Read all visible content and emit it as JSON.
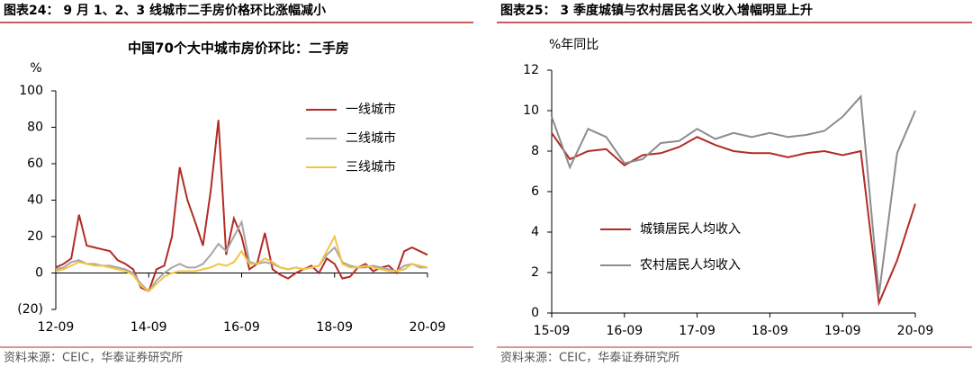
{
  "headers": [
    "图表24：  9 月 1、2、3 线城市二手房价格环比涨幅减小",
    "图表25：  3 季度城镇与农村居民名义收入增幅明显上升"
  ],
  "sources": [
    "资料来源：CEIC，华泰证券研究所",
    "资料来源：CEIC，华泰证券研究所"
  ],
  "chart_data": [
    {
      "type": "line",
      "title": "中国70个大中城市房价环比：二手房",
      "ylabel": "%",
      "categories": [
        "12-09",
        null,
        null,
        null,
        null,
        null,
        null,
        null,
        null,
        null,
        null,
        null,
        "14-09",
        null,
        null,
        null,
        null,
        null,
        null,
        null,
        null,
        null,
        null,
        null,
        "16-09",
        null,
        null,
        null,
        null,
        null,
        null,
        null,
        null,
        null,
        null,
        null,
        "18-09",
        null,
        null,
        null,
        null,
        null,
        null,
        null,
        null,
        null,
        null,
        null,
        "20-09"
      ],
      "ylim": [
        -20,
        100
      ],
      "yticks": [
        {
          "value": -20,
          "label": "(20)"
        },
        0,
        20,
        40,
        60,
        80,
        100
      ],
      "legend": "upper-right",
      "series": [
        {
          "name": "一线城市",
          "color": "#b22b26",
          "values": [
            3,
            5,
            8,
            32,
            15,
            14,
            13,
            12,
            7,
            5,
            2,
            -8,
            -10,
            2,
            4,
            20,
            58,
            40,
            28,
            15,
            45,
            84,
            10,
            30,
            20,
            2,
            5,
            22,
            2,
            -1,
            -3,
            0,
            2,
            4,
            0,
            8,
            5,
            -3,
            -2,
            3,
            5,
            1,
            3,
            4,
            0,
            12,
            14,
            12,
            10
          ]
        },
        {
          "name": "二线城市",
          "color": "#a6a6a6",
          "values": [
            2,
            3,
            6,
            7,
            5,
            5,
            4,
            4,
            3,
            2,
            0,
            -6,
            -10,
            -4,
            0,
            3,
            5,
            3,
            3,
            5,
            10,
            16,
            12,
            20,
            28,
            6,
            5,
            6,
            5,
            3,
            2,
            3,
            2,
            3,
            4,
            10,
            14,
            6,
            4,
            3,
            3,
            4,
            3,
            2,
            1,
            4,
            5,
            3,
            3
          ]
        },
        {
          "name": "三线城市",
          "color": "#f5c342",
          "values": [
            1,
            2,
            4,
            6,
            5,
            4,
            4,
            3,
            2,
            1,
            -1,
            -7,
            -10,
            -6,
            -2,
            0,
            1,
            1,
            1,
            2,
            3,
            5,
            4,
            6,
            12,
            5,
            5,
            8,
            6,
            3,
            2,
            3,
            2,
            3,
            4,
            12,
            20,
            5,
            3,
            3,
            4,
            3,
            2,
            1,
            1,
            2,
            5,
            4,
            3
          ]
        }
      ]
    },
    {
      "type": "line",
      "ylabel": "%年同比",
      "categories": [
        "15-09",
        null,
        null,
        null,
        "16-09",
        null,
        null,
        null,
        "17-09",
        null,
        null,
        null,
        "18-09",
        null,
        null,
        null,
        "19-09",
        null,
        null,
        null,
        "20-09"
      ],
      "ylim": [
        0,
        12
      ],
      "yticks": [
        0,
        2,
        4,
        6,
        8,
        10,
        12
      ],
      "legend": "center-left",
      "series": [
        {
          "name": "城镇居民人均收入",
          "color": "#b22b26",
          "values": [
            8.9,
            7.6,
            8.0,
            8.1,
            7.3,
            7.8,
            7.9,
            8.2,
            8.7,
            8.3,
            8.0,
            7.9,
            7.9,
            7.7,
            7.9,
            8.0,
            7.8,
            8.0,
            0.5,
            2.6,
            5.4
          ]
        },
        {
          "name": "农村居民人均收入",
          "color": "#8c8c8c",
          "values": [
            9.7,
            7.2,
            9.1,
            8.7,
            7.4,
            7.6,
            8.4,
            8.5,
            9.1,
            8.6,
            8.9,
            8.7,
            8.9,
            8.7,
            8.8,
            9.0,
            9.7,
            10.7,
            0.9,
            7.9,
            10.0
          ]
        }
      ]
    }
  ]
}
